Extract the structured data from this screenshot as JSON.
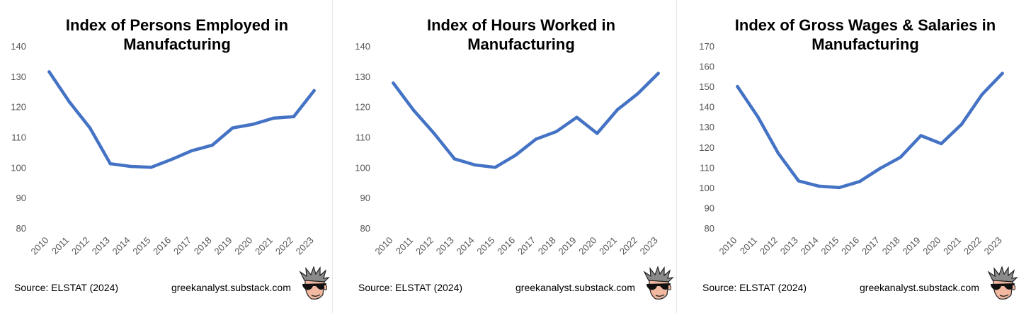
{
  "footer": {
    "source": "Source: ELSTAT (2024)",
    "site": "greekanalyst.substack.com"
  },
  "chart_data": [
    {
      "type": "line",
      "title": "Index of Persons Employed in Manufacturing",
      "title_lines": [
        "Index of Persons Employed in",
        "Manufacturing"
      ],
      "categories": [
        "2010",
        "2011",
        "2012",
        "2013",
        "2014",
        "2015",
        "2016",
        "2017",
        "2018",
        "2019",
        "2020",
        "2021",
        "2022",
        "2023"
      ],
      "series": [
        {
          "values": [
            131.5,
            121.5,
            113,
            101.2,
            100.3,
            100,
            102.6,
            105.5,
            107.3,
            113,
            114.2,
            116.2,
            116.7,
            125.3
          ]
        }
      ],
      "yticks": [
        80,
        90,
        100,
        110,
        120,
        130,
        140
      ],
      "ylim": [
        80,
        140
      ],
      "color": "#4472c4",
      "grid": false,
      "legend": "none"
    },
    {
      "type": "line",
      "title": "Index of Hours Worked in Manufacturing",
      "title_lines": [
        "Index of Hours Worked in",
        "Manufacturing"
      ],
      "categories": [
        "2010",
        "2011",
        "2012",
        "2013",
        "2014",
        "2015",
        "2016",
        "2017",
        "2018",
        "2019",
        "2020",
        "2021",
        "2022",
        "2023"
      ],
      "series": [
        {
          "values": [
            127.8,
            118.8,
            111.2,
            102.8,
            100.8,
            100,
            104,
            109.3,
            111.8,
            116.5,
            111.2,
            119,
            124.3,
            131
          ]
        }
      ],
      "yticks": [
        80,
        90,
        100,
        110,
        120,
        130,
        140
      ],
      "ylim": [
        80,
        140
      ],
      "color": "#4472c4",
      "grid": false,
      "legend": "none"
    },
    {
      "type": "line",
      "title": "Index of Gross Wages & Salaries in Manufacturing",
      "title_lines": [
        "Index of Gross Wages & Salaries in",
        "Manufacturing"
      ],
      "categories": [
        "2010",
        "2011",
        "2012",
        "2013",
        "2014",
        "2015",
        "2016",
        "2017",
        "2018",
        "2019",
        "2020",
        "2021",
        "2022",
        "2023"
      ],
      "series": [
        {
          "values": [
            150,
            135,
            117,
            103.3,
            100.7,
            100,
            103,
            109.5,
            115,
            125.7,
            121.7,
            131.3,
            146,
            156.5
          ]
        }
      ],
      "yticks": [
        80,
        90,
        100,
        110,
        120,
        130,
        140,
        150,
        160,
        170
      ],
      "ylim": [
        80,
        170
      ],
      "color": "#4472c4",
      "grid": false,
      "legend": "none"
    }
  ]
}
